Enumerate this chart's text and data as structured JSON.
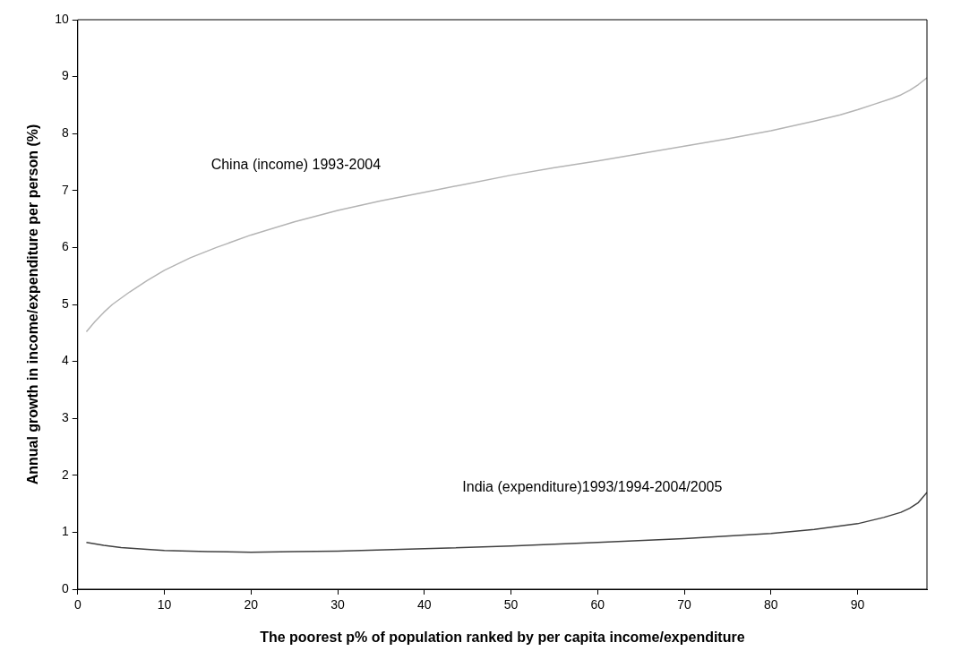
{
  "chart_data": {
    "type": "line",
    "xlabel": "The poorest p% of population ranked by per capita income/expenditure",
    "ylabel": "Annual growth in income/expenditure per person (%)",
    "xlim": [
      0,
      98
    ],
    "xticks": [
      0,
      10,
      20,
      30,
      40,
      50,
      60,
      70,
      80,
      90
    ],
    "ylim": [
      0,
      10
    ],
    "yticks": [
      0,
      1,
      2,
      3,
      4,
      5,
      6,
      7,
      8,
      9,
      10
    ],
    "grid": false,
    "legend": false,
    "marker": "none",
    "series": [
      {
        "name": "China (income) 1993-2004",
        "color": "#b4b4b4",
        "x": [
          1,
          2,
          3,
          4,
          6,
          8,
          10,
          13,
          16,
          20,
          25,
          30,
          35,
          40,
          45,
          50,
          55,
          60,
          65,
          70,
          75,
          80,
          85,
          88,
          90,
          92,
          94,
          95,
          96,
          97,
          98
        ],
        "values": [
          4.52,
          4.7,
          4.86,
          5.0,
          5.22,
          5.42,
          5.6,
          5.82,
          6.0,
          6.22,
          6.45,
          6.65,
          6.82,
          6.97,
          7.12,
          7.27,
          7.4,
          7.52,
          7.65,
          7.78,
          7.91,
          8.05,
          8.22,
          8.33,
          8.42,
          8.52,
          8.62,
          8.68,
          8.76,
          8.86,
          8.98
        ]
      },
      {
        "name": "India (expenditure)1993/1994-2004/2005",
        "color": "#404040",
        "x": [
          1,
          3,
          5,
          8,
          10,
          15,
          20,
          25,
          30,
          40,
          50,
          60,
          70,
          80,
          85,
          90,
          93,
          95,
          96,
          97,
          98
        ],
        "values": [
          0.82,
          0.77,
          0.73,
          0.7,
          0.68,
          0.66,
          0.65,
          0.66,
          0.67,
          0.71,
          0.76,
          0.82,
          0.89,
          0.98,
          1.05,
          1.15,
          1.26,
          1.35,
          1.42,
          1.52,
          1.7
        ]
      }
    ]
  }
}
